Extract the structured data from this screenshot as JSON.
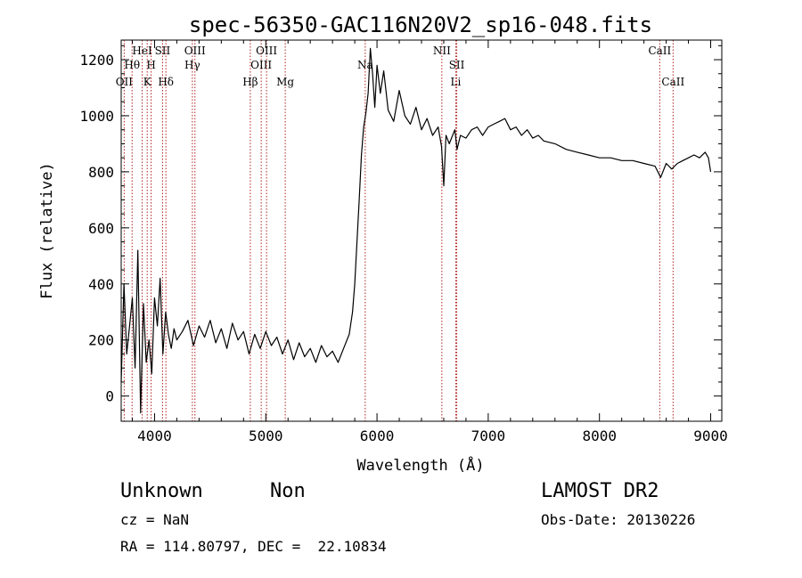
{
  "chart_data": {
    "type": "line",
    "title": "spec-56350-GAC116N20V2_sp16-048.fits",
    "xlabel": "Wavelength (Å)",
    "ylabel": "Flux (relative)",
    "xlim": [
      3700,
      9100
    ],
    "ylim": [
      -90,
      1270
    ],
    "x_ticks": [
      4000,
      5000,
      6000,
      7000,
      8000,
      9000
    ],
    "y_ticks": [
      0,
      200,
      400,
      600,
      800,
      1000,
      1200
    ],
    "x_tick_labels": [
      "4000",
      "5000",
      "6000",
      "7000",
      "8000",
      "9000"
    ],
    "y_tick_labels": [
      "0",
      "200",
      "400",
      "600",
      "800",
      "1000",
      "1200"
    ],
    "series": [
      {
        "x": [
          3700,
          3725,
          3750,
          3775,
          3800,
          3825,
          3850,
          3875,
          3900,
          3925,
          3950,
          3975,
          4000,
          4025,
          4050,
          4075,
          4100,
          4125,
          4150,
          4175,
          4200,
          4250,
          4300,
          4350,
          4400,
          4450,
          4500,
          4550,
          4600,
          4650,
          4700,
          4750,
          4800,
          4850,
          4900,
          4950,
          5000,
          5050,
          5100,
          5150,
          5200,
          5250,
          5300,
          5350,
          5400,
          5450,
          5500,
          5550,
          5600,
          5650,
          5700,
          5750,
          5780,
          5800,
          5820,
          5840,
          5860,
          5880,
          5900,
          5920,
          5940,
          5960,
          5980,
          6000,
          6030,
          6060,
          6100,
          6150,
          6200,
          6250,
          6300,
          6350,
          6400,
          6450,
          6500,
          6550,
          6580,
          6600,
          6620,
          6650,
          6700,
          6720,
          6750,
          6800,
          6850,
          6900,
          6950,
          7000,
          7050,
          7100,
          7150,
          7200,
          7250,
          7300,
          7350,
          7400,
          7450,
          7500,
          7600,
          7700,
          7800,
          7900,
          8000,
          8100,
          8200,
          8300,
          8400,
          8500,
          8550,
          8600,
          8650,
          8700,
          8750,
          8800,
          8850,
          8900,
          8950,
          8980,
          9000
        ],
        "y": [
          50,
          400,
          150,
          250,
          350,
          100,
          520,
          -60,
          330,
          120,
          200,
          80,
          350,
          250,
          420,
          150,
          300,
          220,
          170,
          240,
          200,
          230,
          270,
          180,
          250,
          210,
          270,
          190,
          240,
          170,
          260,
          200,
          230,
          150,
          220,
          170,
          230,
          180,
          210,
          150,
          200,
          130,
          190,
          140,
          170,
          120,
          180,
          140,
          160,
          120,
          170,
          220,
          300,
          400,
          550,
          700,
          860,
          960,
          1010,
          1080,
          1240,
          1150,
          1030,
          1180,
          1080,
          1160,
          1020,
          980,
          1090,
          1000,
          970,
          1030,
          950,
          990,
          930,
          960,
          890,
          750,
          930,
          900,
          950,
          880,
          930,
          920,
          950,
          960,
          930,
          960,
          970,
          980,
          990,
          950,
          960,
          930,
          950,
          920,
          930,
          910,
          900,
          880,
          870,
          860,
          850,
          850,
          840,
          840,
          830,
          820,
          780,
          830,
          810,
          830,
          840,
          850,
          860,
          850,
          870,
          850,
          800
        ]
      }
    ],
    "line_markers": [
      {
        "label": "OII",
        "x": 3727
      },
      {
        "label": "Hθ",
        "x": 3798
      },
      {
        "label": "HeI",
        "x": 3889
      },
      {
        "label": "K",
        "x": 3934
      },
      {
        "label": "H",
        "x": 3969
      },
      {
        "label": "SII",
        "x": 4072
      },
      {
        "label": "Hδ",
        "x": 4102
      },
      {
        "label": "Hγ",
        "x": 4340
      },
      {
        "label": "OIII",
        "x": 4363
      },
      {
        "label": "Hβ",
        "x": 4861
      },
      {
        "label": "OIII",
        "x": 4959
      },
      {
        "label": "OIII",
        "x": 5007
      },
      {
        "label": "Mg",
        "x": 5175
      },
      {
        "label": "Na",
        "x": 5894
      },
      {
        "label": "NII",
        "x": 6583
      },
      {
        "label": "Li",
        "x": 6708
      },
      {
        "label": "SII",
        "x": 6717
      },
      {
        "label": "CaII",
        "x": 8542
      },
      {
        "label": "CaII",
        "x": 8662
      }
    ]
  },
  "info": {
    "class": "Unknown",
    "subclass": "Non",
    "survey": "LAMOST DR2",
    "cz": "cz = NaN",
    "obs_date": "Obs-Date: 20130226",
    "coords": "RA = 114.80797, DEC =  22.10834"
  }
}
